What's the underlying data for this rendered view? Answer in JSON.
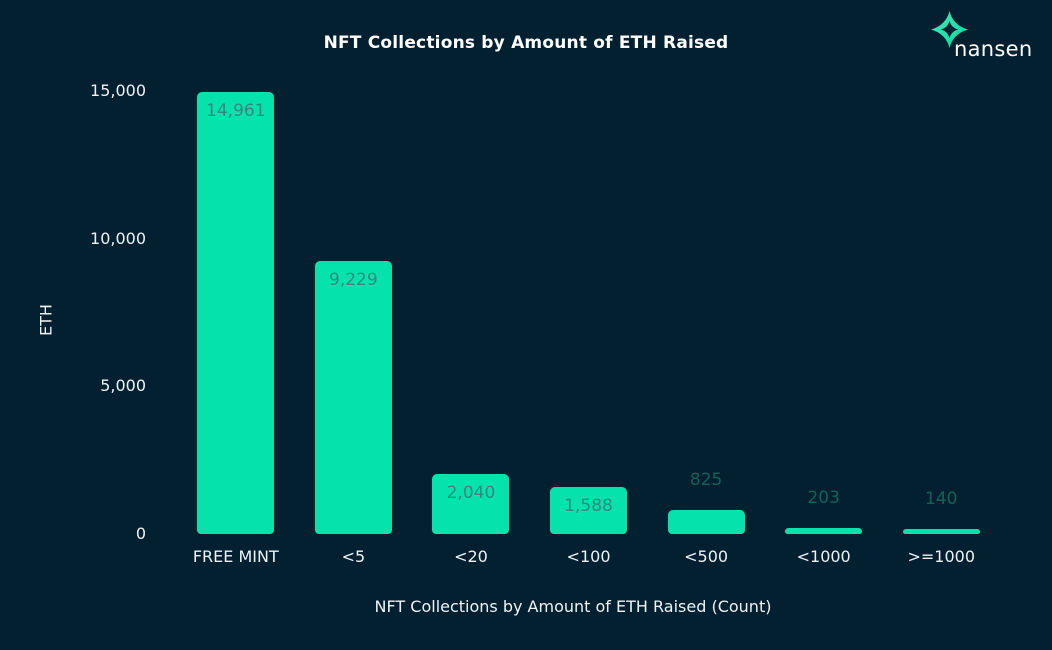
{
  "brand": {
    "wordmark": "nansen",
    "logo_icon": "nansen-star-icon"
  },
  "chart_data": {
    "type": "bar",
    "title": "NFT Collections by Amount of ETH Raised",
    "xlabel": "NFT Collections by Amount of ETH Raised (Count)",
    "ylabel": "ETH",
    "categories": [
      "FREE MINT",
      "<5",
      "<20",
      "<100",
      "<500",
      "<1000",
      ">=1000"
    ],
    "values": [
      14961,
      9229,
      2040,
      1588,
      825,
      203,
      140
    ],
    "value_labels": [
      "14,961",
      "9,229",
      "2,040",
      "1,588",
      "825",
      "203",
      "140"
    ],
    "ylim": [
      0,
      15000
    ],
    "yticks": [
      0,
      5000,
      10000,
      15000
    ],
    "ytick_labels": [
      "0",
      "5,000",
      "10,000",
      "15,000"
    ],
    "grid": false,
    "legend": "none",
    "background_color": "#032030",
    "bar_color": "#05e2ab",
    "label_color_inside": "#2b8c7c",
    "label_color_outside": "#156159",
    "text_color": "#edf2f6",
    "title_color": "#ffffff",
    "logo_green_light": "#49eab8",
    "logo_green_dark": "#00d8a2"
  }
}
